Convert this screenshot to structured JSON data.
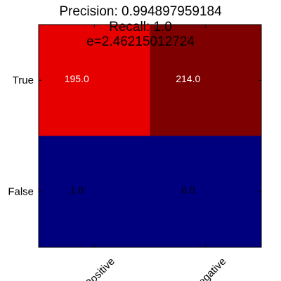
{
  "chart_data": {
    "type": "heatmap",
    "title_lines": [
      "Precision: 0.994897959184",
      "Recall: 1.0",
      "e=2.46215012724"
    ],
    "x_categories": [
      "Positive",
      "Negative"
    ],
    "y_categories": [
      "True",
      "False"
    ],
    "values": [
      [
        195.0,
        214.0
      ],
      [
        1.0,
        0.0
      ]
    ],
    "cell_labels": [
      [
        "195.0",
        "214.0"
      ],
      [
        "1.0",
        "0.0"
      ]
    ],
    "colormap": {
      "low": "#00007f",
      "high": "#7f0000"
    },
    "cell_colors": [
      [
        "#e60000",
        "#7f0000"
      ],
      [
        "#00007f",
        "#00007f"
      ]
    ],
    "label_colors": [
      [
        "#ffffff",
        "#ffffff"
      ],
      [
        "#000000",
        "#000000"
      ]
    ],
    "x_tick_rotation_deg": -45,
    "grid": false,
    "legend": "none"
  }
}
